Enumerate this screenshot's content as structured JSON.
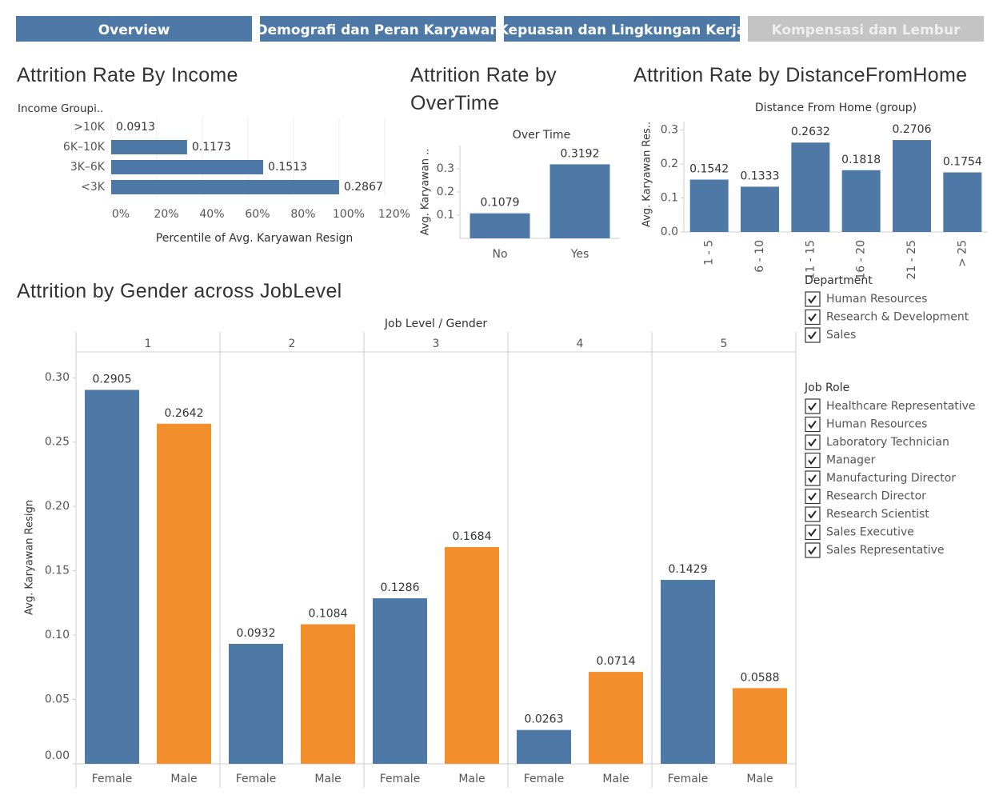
{
  "tabs": [
    "Overview",
    "Demografi dan Peran Karyawan",
    "Kepuasan dan Lingkungan Kerja",
    "Kompensasi dan Lembur"
  ],
  "chart_data": [
    {
      "type": "hbar",
      "title": "Attrition Rate By Income",
      "y_label": "Income Groupi..",
      "x_label": "Percentile of Avg. Karyawan Resign",
      "categories": [
        ">10K",
        "6K–10K",
        "3K–6K",
        "<3K"
      ],
      "values": [
        0,
        33.3,
        66.7,
        100
      ],
      "avg_values": [
        0.0913,
        0.1173,
        0.1513,
        0.2867
      ],
      "color": "#4e79a7",
      "xlim": [
        0,
        126
      ],
      "xticks": [
        {
          "value": 0,
          "label": "0%"
        },
        {
          "value": 20,
          "label": "20%"
        },
        {
          "value": 40,
          "label": "40%"
        },
        {
          "value": 60,
          "label": "60%"
        },
        {
          "value": 80,
          "label": "80%"
        },
        {
          "value": 100,
          "label": "100%"
        },
        {
          "value": 120,
          "label": "120%"
        }
      ]
    },
    {
      "type": "bar",
      "title": "Attrition Rate by OverTime",
      "header": "Over Time",
      "y_label": "Avg. Karyawan ..",
      "categories": [
        "No",
        "Yes"
      ],
      "values": [
        0.1079,
        0.3192
      ],
      "color": "#4e79a7",
      "ylim": [
        0,
        0.4
      ],
      "yticks": [
        0.1,
        0.2,
        0.3
      ]
    },
    {
      "type": "bar",
      "title": "Attrition Rate by DistanceFromHome",
      "header": "Distance From Home (group)",
      "y_label": "Avg. Karyawan Res..",
      "categories": [
        "1 - 5",
        "6 - 10",
        "11 - 15",
        "16 - 20",
        "21 - 25",
        "> 25"
      ],
      "values": [
        0.1542,
        0.1333,
        0.2632,
        0.1818,
        0.2706,
        0.1754
      ],
      "color": "#4e79a7",
      "ylim": [
        0,
        0.325
      ],
      "yticks": [
        {
          "value": 0,
          "label": "0.0"
        },
        0.1,
        0.2,
        0.3
      ]
    },
    {
      "type": "grouped_bar",
      "title": "Attrition by Gender across JobLevel",
      "header": "Job Level  /  Gender",
      "y_label": "Avg. Karyawan Resign",
      "categories": [
        "1",
        "2",
        "3",
        "4",
        "5"
      ],
      "series": [
        {
          "name": "Female",
          "color": "#4e79a7",
          "values": [
            0.2905,
            0.0932,
            0.1286,
            0.0263,
            0.1429
          ]
        },
        {
          "name": "Male",
          "color": "#f28e2b",
          "values": [
            0.2642,
            0.1084,
            0.1684,
            0.0714,
            0.0588
          ]
        }
      ],
      "ylim": [
        0,
        0.32
      ],
      "yticks": [
        {
          "value": 0,
          "label": "0.00"
        },
        {
          "value": 0.05,
          "label": "0.05"
        },
        {
          "value": 0.1,
          "label": "0.10"
        },
        {
          "value": 0.15,
          "label": "0.15"
        },
        {
          "value": 0.2,
          "label": "0.20"
        },
        {
          "value": 0.25,
          "label": "0.25"
        },
        {
          "value": 0.3,
          "label": "0.30"
        }
      ]
    }
  ],
  "filters": [
    {
      "title": "Department",
      "items": [
        "Human Resources",
        "Research & Development",
        "Sales"
      ]
    },
    {
      "title": "Job Role",
      "items": [
        "Healthcare Representative",
        "Human Resources",
        "Laboratory Technician",
        "Manager",
        "Manufacturing Director",
        "Research Director",
        "Research Scientist",
        "Sales Executive",
        "Sales Representative"
      ]
    }
  ]
}
